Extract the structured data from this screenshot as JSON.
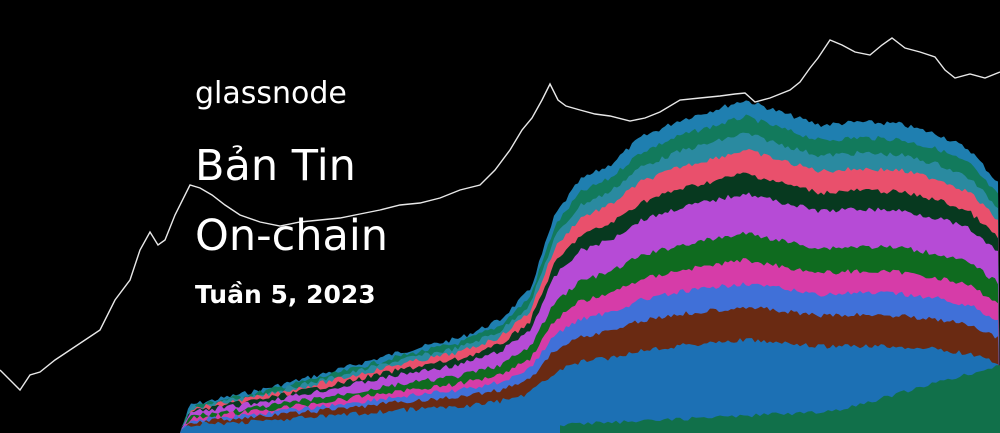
{
  "brand": "glassnode",
  "title_line1": "Bản Tin",
  "title_line2": "On-chain",
  "subtitle": "Tuần 5, 2023"
}
